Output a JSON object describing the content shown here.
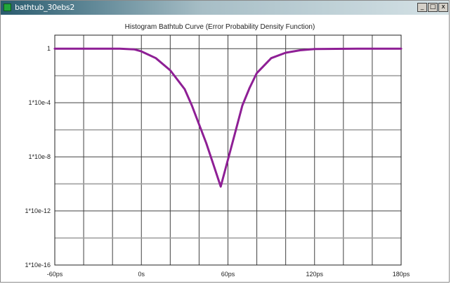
{
  "window": {
    "title": "bathtub_30ebs2",
    "btn_min": "_",
    "btn_max": "□",
    "btn_close": "x",
    "colors": {
      "titlebar": "#2a5b6e"
    }
  },
  "chart_data": {
    "type": "line",
    "title": "Histogram Bathtub Curve (Error Probability Density Function)",
    "xlabel": "",
    "ylabel": "",
    "x_unit": "ps",
    "xlim": [
      -60,
      180
    ],
    "ylim_log10": [
      -16,
      1
    ],
    "y_scale": "log",
    "grid": true,
    "x_ticks": [
      {
        "value": -60,
        "label": "-60ps"
      },
      {
        "value": 0,
        "label": "0s"
      },
      {
        "value": 60,
        "label": "60ps"
      },
      {
        "value": 120,
        "label": "120ps"
      },
      {
        "value": 180,
        "label": "180ps"
      }
    ],
    "y_ticks": [
      {
        "log10": 0,
        "label": "1"
      },
      {
        "log10": -4,
        "label": "1*10e-4"
      },
      {
        "log10": -8,
        "label": "1*10e-8"
      },
      {
        "log10": -12,
        "label": "1*10e-12"
      },
      {
        "log10": -16,
        "label": "1*10e-16"
      }
    ],
    "series": [
      {
        "color": "#8e1f95",
        "x_ps": [
          -60,
          -30,
          -15,
          -5,
          0,
          10,
          20,
          30,
          35,
          40,
          45,
          50,
          55,
          60,
          65,
          70,
          75,
          80,
          90,
          100,
          110,
          120,
          150,
          180
        ],
        "log10_y": [
          0,
          0,
          0,
          -0.05,
          -0.2,
          -0.7,
          -1.6,
          -3,
          -4.2,
          -5.6,
          -7,
          -8.6,
          -10.2,
          -8.2,
          -6.2,
          -4.2,
          -2.9,
          -1.8,
          -0.7,
          -0.3,
          -0.12,
          -0.03,
          0,
          0
        ]
      }
    ]
  }
}
